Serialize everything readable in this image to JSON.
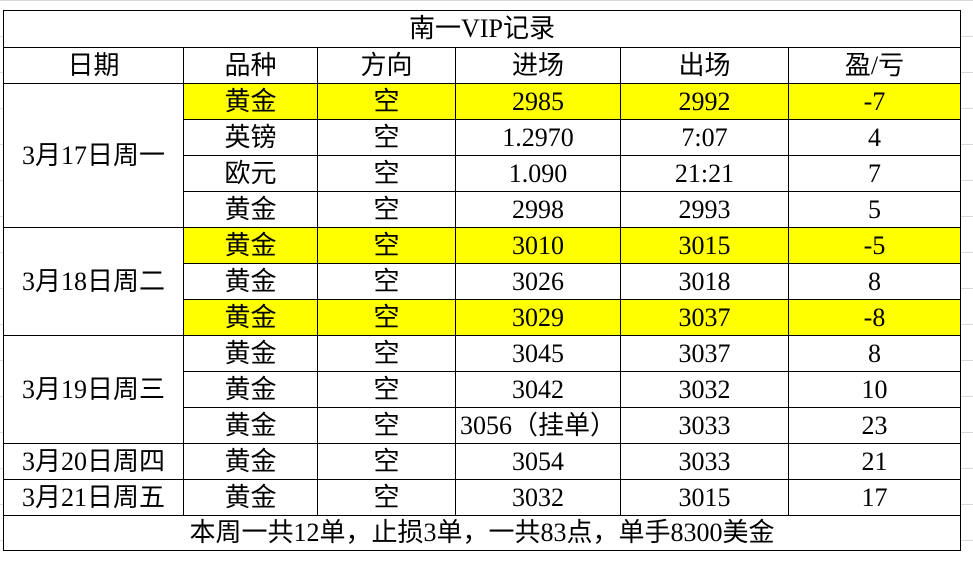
{
  "title": "南一VIP记录",
  "headers": [
    "日期",
    "品种",
    "方向",
    "进场",
    "出场",
    "盈/亏"
  ],
  "groups": [
    {
      "date": "3月17日周一",
      "rows": [
        {
          "cells": [
            "黄金",
            "空",
            "2985",
            "2992",
            "-7"
          ],
          "highlight": true
        },
        {
          "cells": [
            "英镑",
            "空",
            "1.2970",
            "7:07",
            "4"
          ],
          "highlight": false
        },
        {
          "cells": [
            "欧元",
            "空",
            "1.090",
            "21:21",
            "7"
          ],
          "highlight": false
        },
        {
          "cells": [
            "黄金",
            "空",
            "2998",
            "2993",
            "5"
          ],
          "highlight": false
        }
      ]
    },
    {
      "date": "3月18日周二",
      "rows": [
        {
          "cells": [
            "黄金",
            "空",
            "3010",
            "3015",
            "-5"
          ],
          "highlight": true
        },
        {
          "cells": [
            "黄金",
            "空",
            "3026",
            "3018",
            "8"
          ],
          "highlight": false
        },
        {
          "cells": [
            "黄金",
            "空",
            "3029",
            "3037",
            "-8"
          ],
          "highlight": true
        }
      ]
    },
    {
      "date": "3月19日周三",
      "rows": [
        {
          "cells": [
            "黄金",
            "空",
            "3045",
            "3037",
            "8"
          ],
          "highlight": false
        },
        {
          "cells": [
            "黄金",
            "空",
            "3042",
            "3032",
            "10"
          ],
          "highlight": false
        },
        {
          "cells": [
            "黄金",
            "空",
            "3056（挂单）",
            "3033",
            "23"
          ],
          "highlight": false
        }
      ]
    },
    {
      "date": "3月20日周四",
      "rows": [
        {
          "cells": [
            "黄金",
            "空",
            "3054",
            "3033",
            "21"
          ],
          "highlight": false
        }
      ]
    },
    {
      "date": "3月21日周五",
      "rows": [
        {
          "cells": [
            "黄金",
            "空",
            "3032",
            "3015",
            "17"
          ],
          "highlight": false
        }
      ]
    }
  ],
  "footer": "本周一共12单，止损3单，一共83点，单手8300美金"
}
